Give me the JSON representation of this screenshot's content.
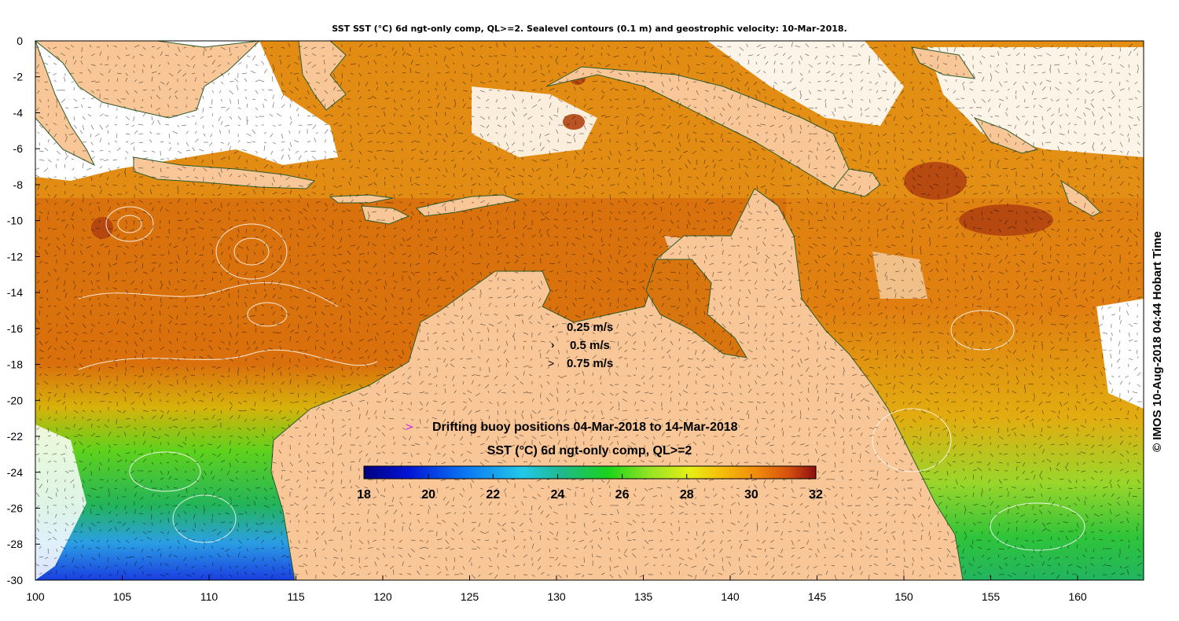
{
  "title": "SST SST (°C) 6d ngt-only comp, QL>=2. Sealevel contours (0.1 m) and geostrophic velocity: 10-Mar-2018.",
  "credit": "IMOS 10-Aug-2018 04:44 Hobart Time",
  "copyright_symbol": "©",
  "axes": {
    "x_ticks": [
      "100",
      "105",
      "110",
      "115",
      "120",
      "125",
      "130",
      "135",
      "140",
      "145",
      "150",
      "155",
      "160"
    ],
    "y_ticks": [
      "0",
      "-2",
      "-4",
      "-6",
      "-8",
      "-10",
      "-12",
      "-14",
      "-16",
      "-18",
      "-20",
      "-22",
      "-24",
      "-26",
      "-28",
      "-30"
    ]
  },
  "velocity_legend": [
    {
      "label": "0.25 m/s",
      "arrow": "·"
    },
    {
      "label": "0.5 m/s",
      "arrow": "›"
    },
    {
      "label": "0.75 m/s",
      "arrow": ">"
    }
  ],
  "buoy_legend": {
    "marker": ">",
    "label": "Drifting buoy positions 04-Mar-2018 to 14-Mar-2018"
  },
  "colorbar": {
    "title": "SST (°C) 6d ngt-only comp, QL>=2",
    "min": 18,
    "max": 32,
    "tick_labels": [
      "18",
      "20",
      "22",
      "24",
      "26",
      "28",
      "30",
      "32"
    ]
  },
  "colors": {
    "land": "#f9c797",
    "coast": "#2b5a2b",
    "warm_sea": "#d9750e",
    "hot_sea": "#b9420f",
    "marker": "#d815ff"
  }
}
